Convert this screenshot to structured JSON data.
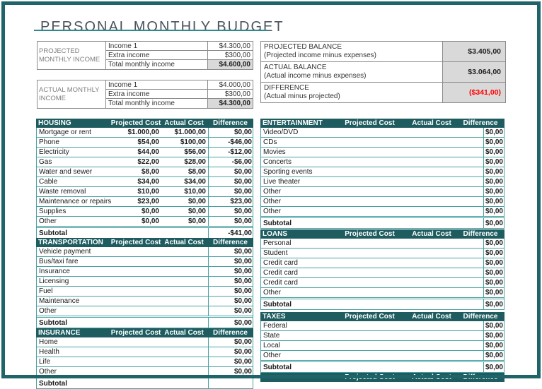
{
  "title": "PERSONAL MONTHLY BUDGET",
  "colors": {
    "header_teal": "#1E5C60",
    "row_border_teal": "#4AA2A2",
    "page_border": "#1E6468",
    "title_rule": "#2E8A8C",
    "shaded_cell": "#D9D9D9",
    "negative_red": "#FF0000"
  },
  "income_tables": [
    {
      "label": "PROJECTED MONTHLY INCOME",
      "rows": [
        [
          "Income 1",
          "$4.300,00"
        ],
        [
          "Extra income",
          "$300,00"
        ],
        [
          "Total monthly income",
          "$4.600,00"
        ]
      ]
    },
    {
      "label": "ACTUAL MONTHLY INCOME",
      "rows": [
        [
          "Income 1",
          "$4.000,00"
        ],
        [
          "Extra income",
          "$300,00"
        ],
        [
          "Total monthly income",
          "$4.300,00"
        ]
      ]
    }
  ],
  "balance": {
    "rows": [
      {
        "name": "PROJECTED BALANCE",
        "desc": "(Projected income minus expenses)",
        "value": "$3.405,00"
      },
      {
        "name": "ACTUAL BALANCE",
        "desc": "(Actual income minus expenses)",
        "value": "$3.064,00"
      },
      {
        "name": "DIFFERENCE",
        "desc": "(Actual minus projected)",
        "value": "($341,00)"
      }
    ]
  },
  "columns": [
    "Projected Cost",
    "Actual Cost",
    "Difference"
  ],
  "expense_tables": [
    {
      "name": "HOUSING",
      "rows": [
        {
          "label": "Mortgage or rent",
          "projected": "$1.000,00",
          "actual": "$1.000,00",
          "difference": "$0,00"
        },
        {
          "label": "Phone",
          "projected": "$54,00",
          "actual": "$100,00",
          "difference": "-$46,00"
        },
        {
          "label": "Electricity",
          "projected": "$44,00",
          "actual": "$56,00",
          "difference": "-$12,00"
        },
        {
          "label": "Gas",
          "projected": "$22,00",
          "actual": "$28,00",
          "difference": "-$6,00"
        },
        {
          "label": "Water and sewer",
          "projected": "$8,00",
          "actual": "$8,00",
          "difference": "$0,00"
        },
        {
          "label": "Cable",
          "projected": "$34,00",
          "actual": "$34,00",
          "difference": "$0,00"
        },
        {
          "label": "Waste removal",
          "projected": "$10,00",
          "actual": "$10,00",
          "difference": "$0,00"
        },
        {
          "label": "Maintenance or repairs",
          "projected": "$23,00",
          "actual": "$0,00",
          "difference": "$23,00"
        },
        {
          "label": "Supplies",
          "projected": "$0,00",
          "actual": "$0,00",
          "difference": "$0,00"
        },
        {
          "label": "Other",
          "projected": "$0,00",
          "actual": "$0,00",
          "difference": "$0,00"
        }
      ],
      "subtotal": {
        "label": "Subtotal",
        "projected": "",
        "actual": "",
        "difference": "-$41,00"
      }
    },
    {
      "name": "TRANSPORTATION",
      "rows": [
        {
          "label": "Vehicle payment",
          "difference": "$0,00"
        },
        {
          "label": "Bus/taxi fare",
          "difference": "$0,00"
        },
        {
          "label": "Insurance",
          "difference": "$0,00"
        },
        {
          "label": "Licensing",
          "difference": "$0,00"
        },
        {
          "label": "Fuel",
          "difference": "$0,00"
        },
        {
          "label": "Maintenance",
          "difference": "$0,00"
        },
        {
          "label": "Other",
          "difference": "$0,00"
        }
      ],
      "subtotal": {
        "label": "Subtotal",
        "projected": "",
        "actual": "",
        "difference": "$0,00"
      }
    },
    {
      "name": "INSURANCE",
      "rows": [
        {
          "label": "Home",
          "difference": "$0,00"
        },
        {
          "label": "Health",
          "difference": "$0,00"
        },
        {
          "label": "Life",
          "difference": "$0,00"
        },
        {
          "label": "Other",
          "difference": "$0,00"
        }
      ],
      "subtotal": {
        "label": "Subtotal",
        "projected": "",
        "actual": "",
        "difference": ""
      }
    },
    {
      "name": "ENTERTAINMENT",
      "rows": [
        {
          "label": "Video/DVD",
          "difference": "$0,00"
        },
        {
          "label": "CDs",
          "difference": "$0,00"
        },
        {
          "label": "Movies",
          "difference": "$0,00"
        },
        {
          "label": "Concerts",
          "difference": "$0,00"
        },
        {
          "label": "Sporting events",
          "difference": "$0,00"
        },
        {
          "label": "Live theater",
          "difference": "$0,00"
        },
        {
          "label": "Other",
          "difference": "$0,00"
        },
        {
          "label": "Other",
          "difference": "$0,00"
        },
        {
          "label": "Other",
          "difference": "$0,00"
        }
      ],
      "subtotal": {
        "label": "Subtotal",
        "projected": "",
        "actual": "",
        "difference": "$0,00"
      }
    },
    {
      "name": "LOANS",
      "rows": [
        {
          "label": "Personal",
          "difference": "$0,00"
        },
        {
          "label": "Student",
          "difference": "$0,00"
        },
        {
          "label": "Credit card",
          "difference": "$0,00"
        },
        {
          "label": "Credit card",
          "difference": "$0,00"
        },
        {
          "label": "Credit card",
          "difference": "$0,00"
        },
        {
          "label": "Other",
          "difference": "$0,00"
        }
      ],
      "subtotal": {
        "label": "Subtotal",
        "projected": "",
        "actual": "",
        "difference": "$0,00"
      }
    },
    {
      "name": "TAXES",
      "rows": [
        {
          "label": "Federal",
          "difference": "$0,00"
        },
        {
          "label": "State",
          "difference": "$0,00"
        },
        {
          "label": "Local",
          "difference": "$0,00"
        },
        {
          "label": "Other",
          "difference": "$0,00"
        }
      ],
      "subtotal": {
        "label": "Subtotal",
        "projected": "",
        "actual": "",
        "difference": "$0,00"
      }
    },
    {
      "name": "",
      "rows": [],
      "subtotal": null
    }
  ]
}
